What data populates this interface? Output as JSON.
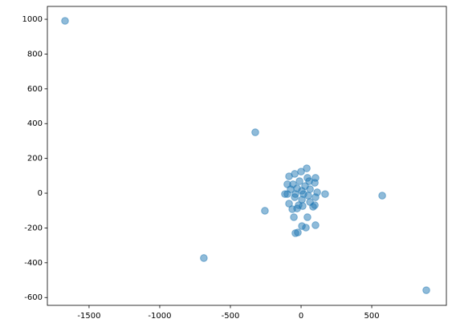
{
  "chart_data": {
    "type": "scatter",
    "x": [
      -1670,
      -324,
      -256,
      -688,
      574,
      886,
      40,
      0,
      -45,
      -85,
      102,
      45,
      57,
      -11,
      -57,
      -97,
      97,
      28,
      -28,
      -74,
      63,
      6,
      114,
      17,
      -40,
      -97,
      -114,
      170,
      51,
      -45,
      102,
      6,
      -85,
      63,
      -17,
      97,
      85,
      11,
      -62,
      -28,
      -51,
      45,
      6,
      34,
      102,
      -40,
      -23
    ],
    "y": [
      991,
      350,
      -101,
      -373,
      -14,
      -558,
      143,
      124,
      111,
      97,
      88,
      88,
      69,
      69,
      51,
      51,
      60,
      41,
      28,
      23,
      23,
      14,
      5,
      -5,
      -5,
      -5,
      -5,
      -5,
      -14,
      -23,
      -23,
      -37,
      -60,
      -51,
      -69,
      -69,
      -78,
      -74,
      -92,
      -88,
      -138,
      -138,
      -189,
      -198,
      -184,
      -230,
      -226
    ],
    "color": "#1f77b4",
    "xlim": [
      -1795,
      1028
    ],
    "ylim": [
      -645,
      1074
    ],
    "xticks": [
      -1500,
      -1000,
      -500,
      0,
      500
    ],
    "yticks": [
      -600,
      -400,
      -200,
      0,
      200,
      400,
      600,
      800,
      1000
    ]
  }
}
